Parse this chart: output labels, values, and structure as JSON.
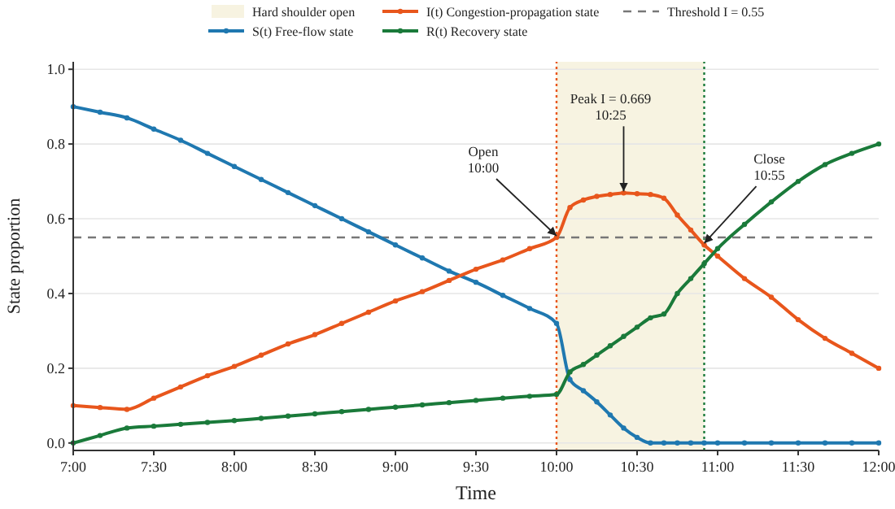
{
  "chart_data": {
    "type": "line",
    "xlabel": "Time",
    "ylabel": "State proportion",
    "x": [
      7,
      7.1667,
      7.3333,
      7.5,
      7.6667,
      7.8333,
      8,
      8.1667,
      8.3333,
      8.5,
      8.6667,
      8.8333,
      9,
      9.1667,
      9.3333,
      9.5,
      9.6667,
      9.8333,
      10,
      10.0833,
      10.1667,
      10.25,
      10.3333,
      10.4167,
      10.5,
      10.5833,
      10.6667,
      10.75,
      10.8333,
      10.9167,
      11,
      11.1667,
      11.3333,
      11.5,
      11.6667,
      11.8333,
      12
    ],
    "series": [
      {
        "name": "S(t) Free-flow state",
        "color": "#1f78b0",
        "values": [
          0.9,
          0.885,
          0.87,
          0.84,
          0.81,
          0.775,
          0.74,
          0.705,
          0.67,
          0.635,
          0.6,
          0.565,
          0.53,
          0.495,
          0.46,
          0.43,
          0.395,
          0.36,
          0.32,
          0.17,
          0.14,
          0.11,
          0.075,
          0.04,
          0.015,
          0,
          0,
          0,
          0,
          0,
          0,
          0,
          0,
          0,
          0,
          0,
          0
        ]
      },
      {
        "name": "I(t) Congestion-propagation state",
        "color": "#e8561c",
        "values": [
          0.1,
          0.095,
          0.09,
          0.12,
          0.15,
          0.18,
          0.205,
          0.235,
          0.265,
          0.29,
          0.32,
          0.35,
          0.38,
          0.405,
          0.435,
          0.465,
          0.49,
          0.52,
          0.55,
          0.63,
          0.65,
          0.66,
          0.665,
          0.669,
          0.667,
          0.665,
          0.655,
          0.61,
          0.57,
          0.53,
          0.5,
          0.44,
          0.39,
          0.33,
          0.28,
          0.24,
          0.2
        ]
      },
      {
        "name": "R(t) Recovery state",
        "color": "#1a7a3a",
        "values": [
          0,
          0.02,
          0.04,
          0.045,
          0.05,
          0.055,
          0.06,
          0.066,
          0.072,
          0.078,
          0.084,
          0.09,
          0.096,
          0.102,
          0.108,
          0.114,
          0.12,
          0.125,
          0.13,
          0.19,
          0.21,
          0.235,
          0.26,
          0.285,
          0.31,
          0.335,
          0.345,
          0.4,
          0.44,
          0.48,
          0.52,
          0.585,
          0.645,
          0.7,
          0.745,
          0.775,
          0.8
        ]
      }
    ],
    "xlim": [
      7,
      12
    ],
    "xticks": [
      {
        "value": 7,
        "label": "7:00"
      },
      {
        "value": 7.5,
        "label": "7:30"
      },
      {
        "value": 8,
        "label": "8:00"
      },
      {
        "value": 8.5,
        "label": "8:30"
      },
      {
        "value": 9,
        "label": "9:00"
      },
      {
        "value": 9.5,
        "label": "9:30"
      },
      {
        "value": 10,
        "label": "10:00"
      },
      {
        "value": 10.5,
        "label": "10:30"
      },
      {
        "value": 11,
        "label": "11:00"
      },
      {
        "value": 11.5,
        "label": "11:30"
      },
      {
        "value": 12,
        "label": "12:00"
      }
    ],
    "ylim": [
      -0.02,
      1.02
    ],
    "yticks": [
      {
        "value": 0,
        "label": "0.0"
      },
      0.2,
      0.4,
      0.6,
      0.8,
      {
        "value": 1,
        "label": "1.0"
      }
    ],
    "grid": "y",
    "legend": "top",
    "marker": "circle",
    "line_style": "solid",
    "bands": [
      {
        "axis": "x",
        "from": 10,
        "to": 10.9167,
        "label": "Hard shoulder open",
        "color": "#f7f3e1"
      }
    ],
    "ref_lines": [
      {
        "axis": "x",
        "value": 10,
        "color": "#e8561c",
        "line_style": "dotted"
      },
      {
        "axis": "x",
        "value": 10.9167,
        "color": "#1a7a3a",
        "line_style": "dotted"
      },
      {
        "axis": "y",
        "value": 0.55,
        "label": "Threshold I = 0.55",
        "color": "#777777",
        "line_style": "dashed"
      }
    ],
    "annotations": [
      {
        "text": "Open\n10:00",
        "x": 10,
        "y": 0.55
      },
      {
        "text": "Peak I = 0.669\n10:25",
        "x": 10.4167,
        "y": 0.669
      },
      {
        "text": "Close\n10:55",
        "x": 10.9167,
        "y": 0.53
      }
    ]
  }
}
